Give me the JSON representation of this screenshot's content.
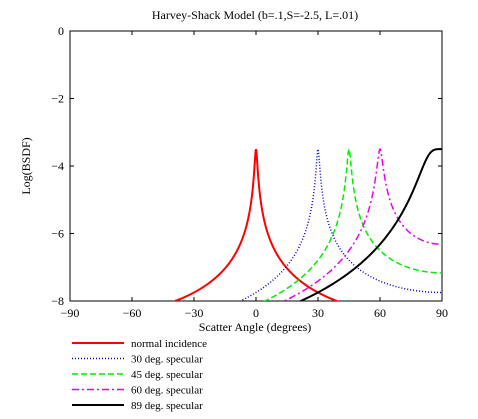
{
  "chart_data": {
    "type": "line",
    "title": "Harvey-Shack Model (b=.1,S=-2.5, L=.01)",
    "xlabel": "Scatter Angle (degrees)",
    "ylabel": "Log(BSDF)",
    "xlim": [
      -90,
      90
    ],
    "ylim": [
      -8,
      0
    ],
    "xticks": [
      -90,
      -60,
      -30,
      0,
      30,
      60,
      90
    ],
    "xtick_labels": [
      "−90",
      "−60",
      "−30",
      "0",
      "30",
      "60",
      "90"
    ],
    "yticks": [
      0,
      -2,
      -4,
      -6,
      -8
    ],
    "ytick_labels": [
      "0",
      "−2",
      "−4",
      "−6",
      "−8"
    ],
    "grid": false,
    "legend_position": "bottom-left",
    "model": {
      "b": 0.1,
      "S": -2.5,
      "L": 0.01
    },
    "series": [
      {
        "name": "normal incidence",
        "specular_deg": 0,
        "color": "#ff0000",
        "style": "solid"
      },
      {
        "name": "30 deg. specular",
        "specular_deg": 30,
        "color": "#0000cc",
        "style": "dotted"
      },
      {
        "name": "45 deg. specular",
        "specular_deg": 45,
        "color": "#00ee00",
        "style": "dashed"
      },
      {
        "name": "60 deg. specular",
        "specular_deg": 60,
        "color": "#ee00ee",
        "style": "dashdot"
      },
      {
        "name": "89 deg. specular",
        "specular_deg": 89,
        "color": "#000000",
        "style": "solid"
      }
    ]
  }
}
